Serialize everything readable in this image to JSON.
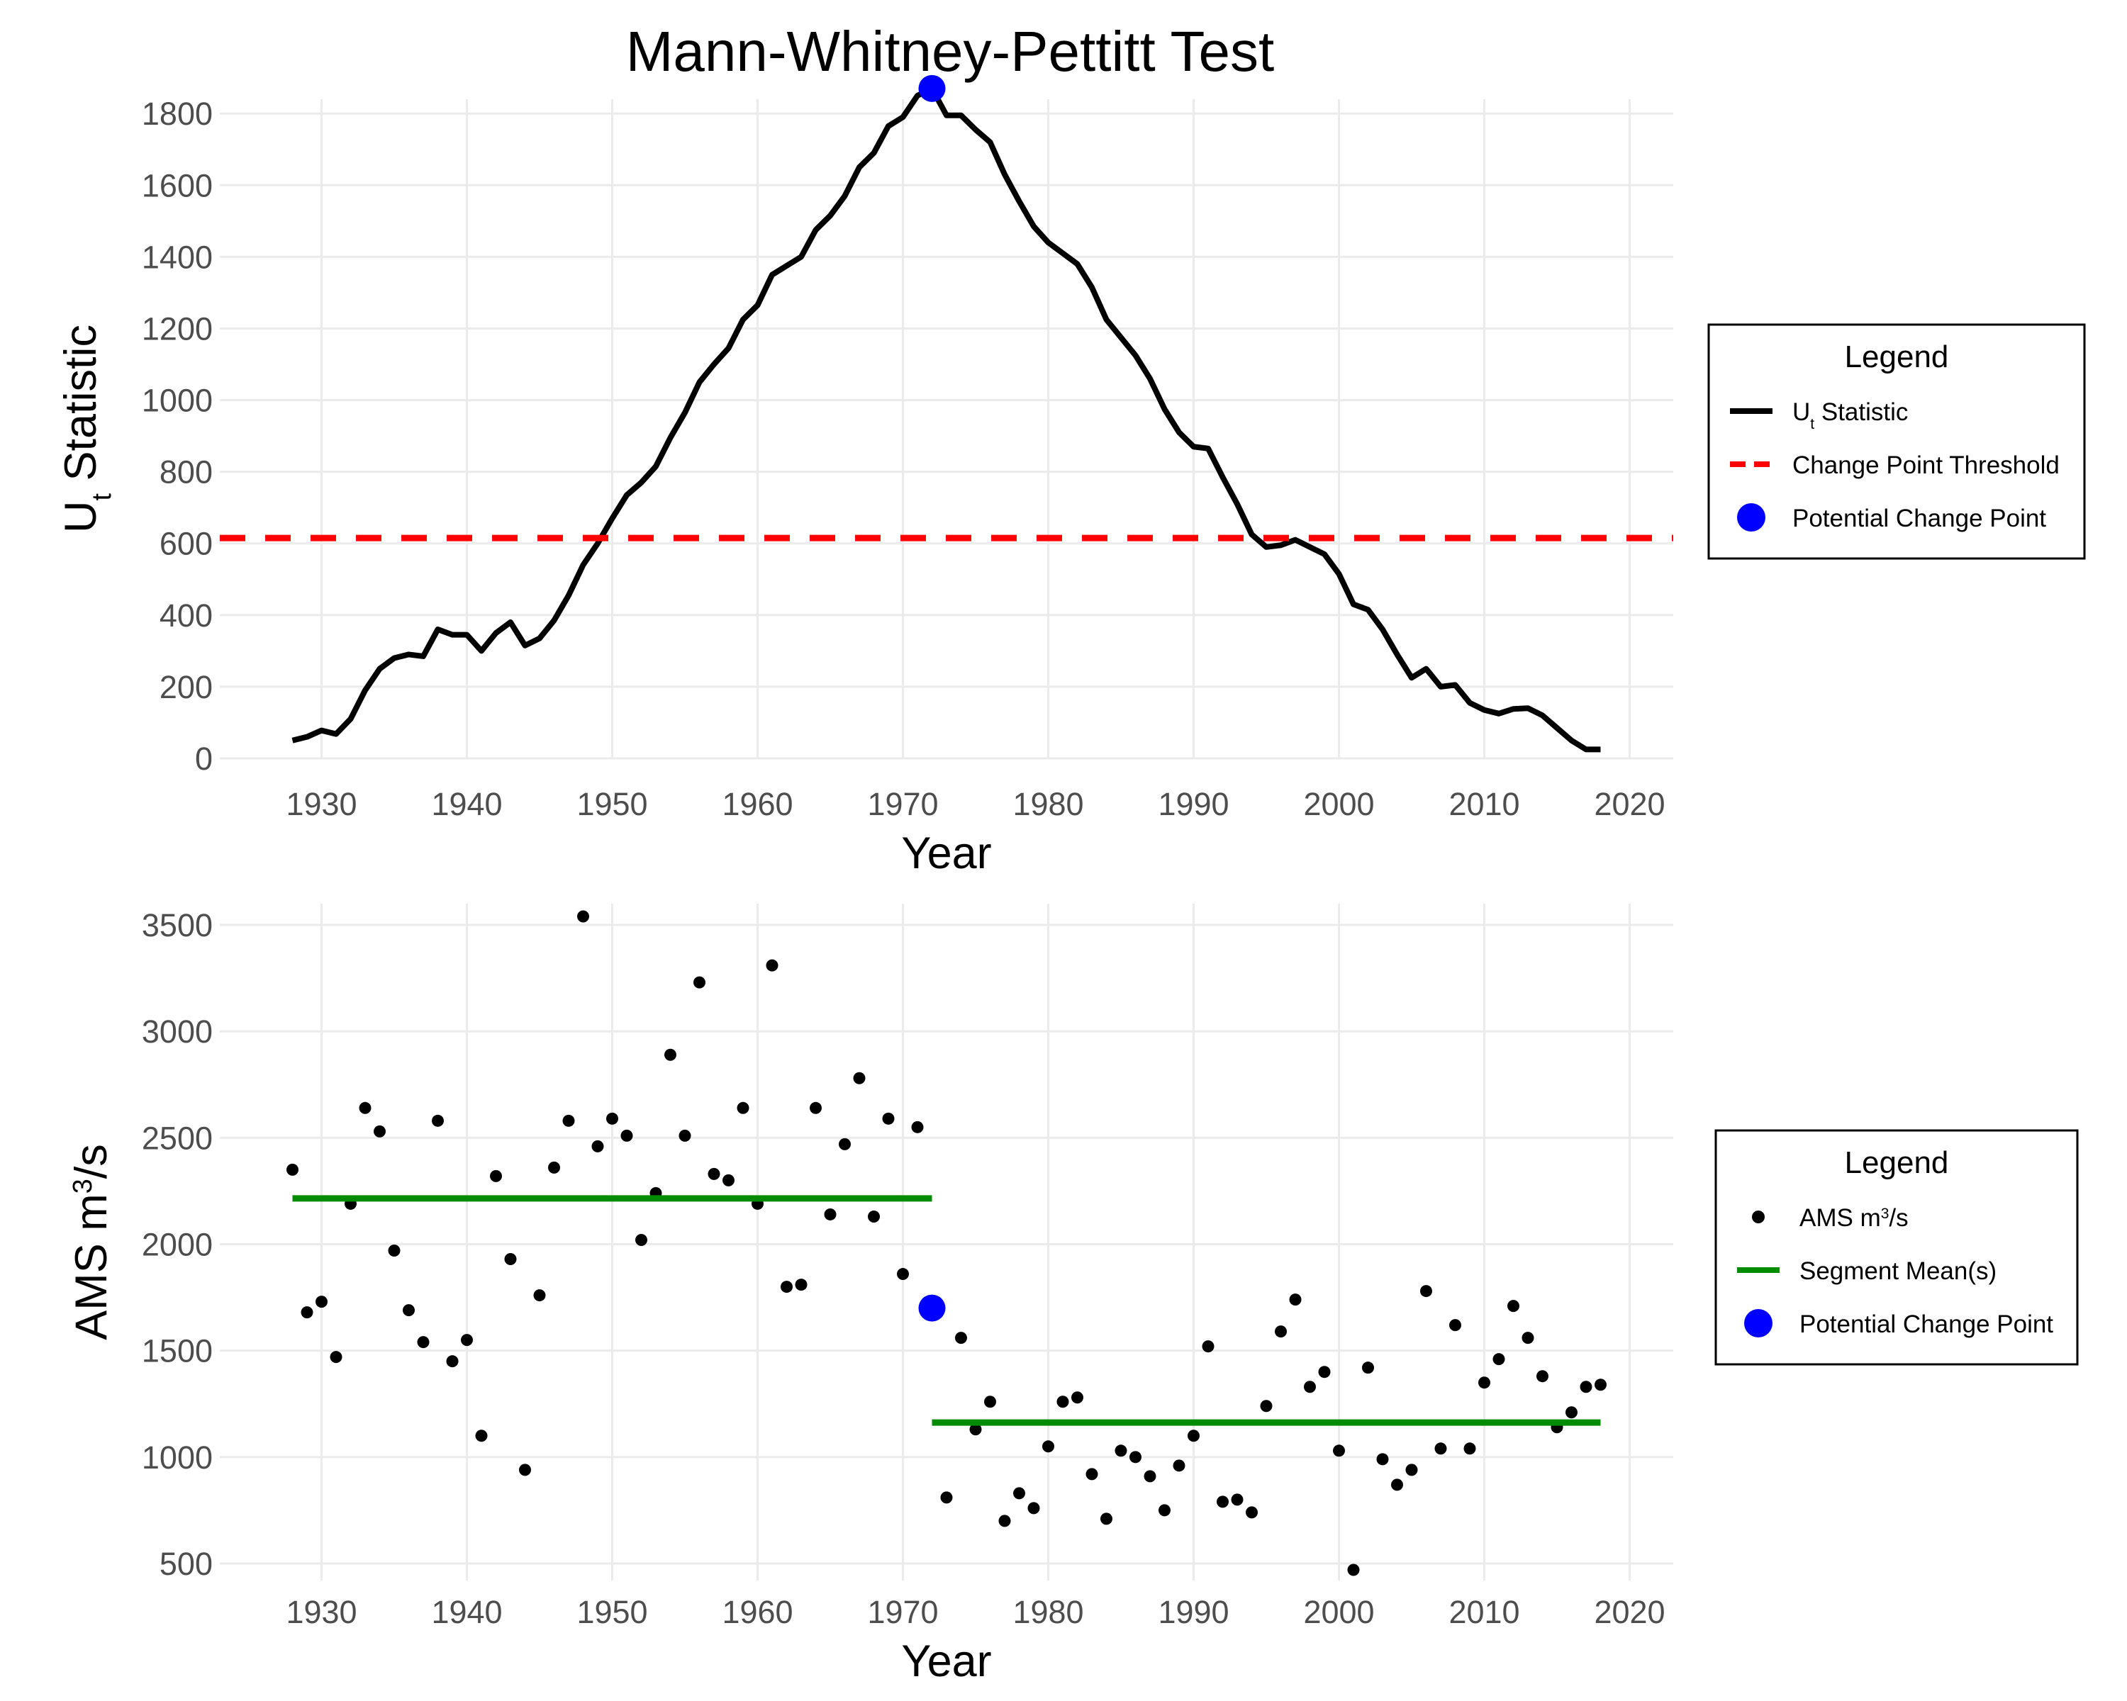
{
  "title": "Mann-Whitney-Pettitt Test",
  "colors": {
    "statistic": "#000000",
    "threshold": "#ff0000",
    "change_point": "#0000ff",
    "segment_mean": "#008b00",
    "ams_points": "#000000"
  },
  "chart_data": [
    {
      "type": "line",
      "xlabel": "Year",
      "ylabel": "U",
      "ylabel_sub": "t",
      "ylabel_rest": " Statistic",
      "xlim": [
        1923,
        2023
      ],
      "ylim": [
        0,
        1840
      ],
      "xticks": [
        1930,
        1940,
        1950,
        1960,
        1970,
        1980,
        1990,
        2000,
        2010,
        2020
      ],
      "yticks": [
        0,
        200,
        400,
        600,
        800,
        1000,
        1200,
        1400,
        1600,
        1800
      ],
      "grid": true,
      "legend": {
        "title": "Legend",
        "position": "right",
        "items": [
          {
            "label": "U",
            "label_sub": "t",
            "label_rest": " Statistic",
            "kind": "line"
          },
          {
            "label": "Change Point Threshold",
            "kind": "dash"
          },
          {
            "label": "Potential Change Point",
            "kind": "point"
          }
        ]
      },
      "series": [
        {
          "name": "Ut Statistic",
          "x": [
            1928,
            1929,
            1930,
            1931,
            1932,
            1933,
            1934,
            1935,
            1936,
            1937,
            1938,
            1939,
            1940,
            1941,
            1942,
            1943,
            1944,
            1945,
            1946,
            1947,
            1948,
            1949,
            1950,
            1951,
            1952,
            1953,
            1954,
            1955,
            1956,
            1957,
            1958,
            1959,
            1960,
            1961,
            1962,
            1963,
            1964,
            1965,
            1966,
            1967,
            1968,
            1969,
            1970,
            1971,
            1972,
            1973,
            1974,
            1975,
            1976,
            1977,
            1978,
            1979,
            1980,
            1981,
            1982,
            1983,
            1984,
            1985,
            1986,
            1987,
            1988,
            1989,
            1990,
            1991,
            1992,
            1993,
            1994,
            1995,
            1996,
            1997,
            1998,
            1999,
            2000,
            2001,
            2002,
            2003,
            2004,
            2005,
            2006,
            2007,
            2008,
            2009,
            2010,
            2011,
            2012,
            2013,
            2014,
            2015,
            2016,
            2017,
            2018
          ],
          "y": [
            50,
            60,
            78,
            68,
            110,
            190,
            250,
            280,
            290,
            285,
            360,
            345,
            345,
            300,
            350,
            380,
            315,
            335,
            385,
            455,
            540,
            600,
            670,
            735,
            770,
            815,
            895,
            965,
            1050,
            1100,
            1145,
            1225,
            1265,
            1350,
            1375,
            1400,
            1475,
            1515,
            1570,
            1650,
            1690,
            1765,
            1790,
            1850,
            1870,
            1795,
            1795,
            1755,
            1720,
            1630,
            1555,
            1485,
            1440,
            1410,
            1380,
            1315,
            1225,
            1175,
            1125,
            1060,
            975,
            910,
            870,
            865,
            785,
            710,
            625,
            590,
            595,
            610,
            590,
            570,
            515,
            430,
            415,
            360,
            290,
            225,
            250,
            200,
            205,
            155,
            135,
            125,
            138,
            140,
            120,
            85,
            50,
            25,
            25
          ]
        },
        {
          "name": "Change Point Threshold",
          "threshold": 615
        },
        {
          "name": "Potential Change Point",
          "x": 1972,
          "y": 1870
        }
      ]
    },
    {
      "type": "scatter",
      "xlabel": "Year",
      "ylabel": "AMS m",
      "ylabel_sup": "3",
      "ylabel_rest": "/s",
      "xlim": [
        1923,
        2023
      ],
      "ylim": [
        420,
        3600
      ],
      "xticks": [
        1930,
        1940,
        1950,
        1960,
        1970,
        1980,
        1990,
        2000,
        2010,
        2020
      ],
      "yticks": [
        500,
        1000,
        1500,
        2000,
        2500,
        3000,
        3500
      ],
      "grid": true,
      "legend": {
        "title": "Legend",
        "position": "right",
        "items": [
          {
            "label": "AMS m",
            "label_sup": "3",
            "label_rest": "/s",
            "kind": "dot"
          },
          {
            "label": "Segment Mean(s)",
            "kind": "line"
          },
          {
            "label": "Potential Change Point",
            "kind": "point"
          }
        ]
      },
      "series": [
        {
          "name": "AMS m3/s",
          "x": [
            1928,
            1929,
            1930,
            1931,
            1932,
            1933,
            1934,
            1935,
            1936,
            1937,
            1938,
            1939,
            1940,
            1941,
            1942,
            1943,
            1944,
            1945,
            1946,
            1947,
            1948,
            1949,
            1950,
            1951,
            1952,
            1953,
            1954,
            1955,
            1956,
            1957,
            1958,
            1959,
            1960,
            1961,
            1962,
            1963,
            1964,
            1965,
            1966,
            1967,
            1968,
            1969,
            1970,
            1971,
            1973,
            1974,
            1975,
            1976,
            1977,
            1978,
            1979,
            1980,
            1981,
            1982,
            1983,
            1984,
            1985,
            1986,
            1987,
            1988,
            1989,
            1990,
            1991,
            1992,
            1993,
            1994,
            1995,
            1996,
            1997,
            1998,
            1999,
            2000,
            2001,
            2002,
            2003,
            2004,
            2005,
            2006,
            2007,
            2008,
            2009,
            2010,
            2011,
            2012,
            2013,
            2014,
            2015,
            2016,
            2017,
            2018
          ],
          "y": [
            2350,
            1680,
            1730,
            1470,
            2190,
            2640,
            2530,
            1970,
            1690,
            1540,
            2580,
            1450,
            1550,
            1100,
            2320,
            1930,
            940,
            1760,
            2360,
            2580,
            3540,
            2460,
            2590,
            2510,
            2020,
            2240,
            2890,
            2510,
            3230,
            2330,
            2300,
            2640,
            2190,
            3310,
            1800,
            1810,
            2640,
            2140,
            2470,
            2780,
            2130,
            2590,
            1860,
            2550,
            810,
            1560,
            1130,
            1260,
            700,
            830,
            760,
            1050,
            1260,
            1280,
            920,
            710,
            1030,
            1000,
            910,
            750,
            960,
            1100,
            1520,
            790,
            800,
            740,
            1240,
            1590,
            1740,
            1330,
            1400,
            1030,
            470,
            1420,
            990,
            870,
            940,
            1780,
            1040,
            1620,
            1040,
            1350,
            1460,
            1710,
            1560,
            1380,
            1140,
            1210,
            1330,
            1340
          ]
        },
        {
          "name": "Segment Mean(s)",
          "segments": [
            {
              "x": [
                1928,
                1972
              ],
              "y": 2215
            },
            {
              "x": [
                1972,
                2018
              ],
              "y": 1162
            }
          ]
        },
        {
          "name": "Potential Change Point",
          "x": 1972,
          "y": 1700
        }
      ]
    }
  ]
}
